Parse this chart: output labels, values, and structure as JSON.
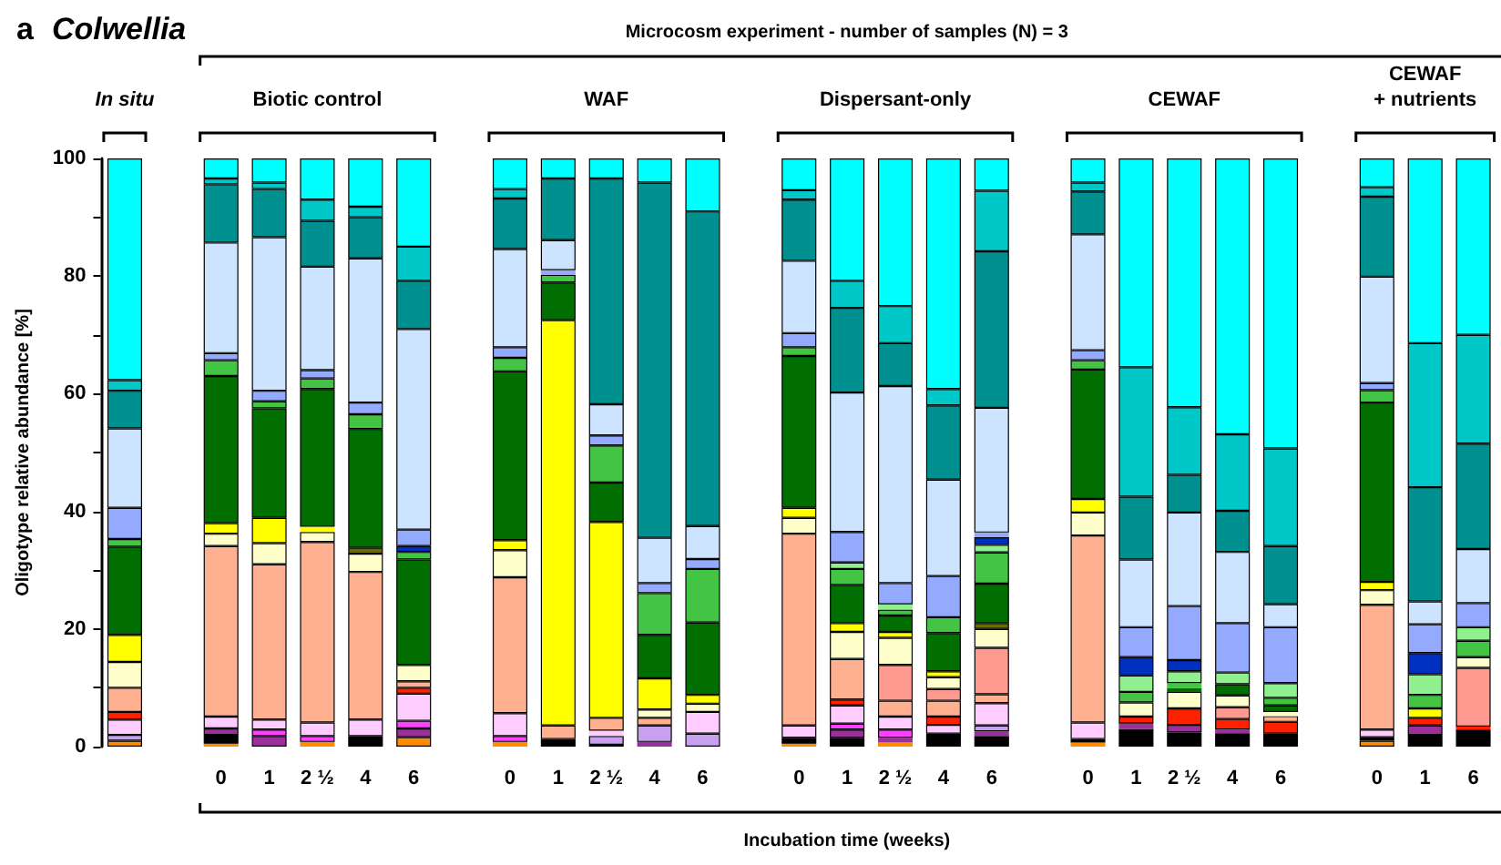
{
  "chart_data": {
    "type": "bar",
    "title": "a Colwellia",
    "xlabel": "Incubation time (weeks)",
    "ylabel": "Oligotype relative abundance [%]",
    "annotations": [
      "In situ",
      "Biotic control",
      "WAF",
      "Dispersant-only",
      "CEWAF",
      "CEWAF\n+ nutrients",
      "Microcosm experiment - number of samples (N) = 3"
    ],
    "categories": [
      null,
      null,
      "0",
      "1",
      "2 ½",
      "4",
      "6",
      null,
      "0",
      "1",
      "2 ½",
      "4",
      "6",
      null,
      "0",
      "1",
      "2 ½",
      "4",
      "6",
      null,
      "0",
      "1",
      "2 ½",
      "4",
      "6",
      null,
      "0",
      "1",
      "6"
    ],
    "stacked": true,
    "ylim": [
      0,
      100
    ],
    "yticks": [
      0,
      {
        "value": 10,
        "label": null
      },
      20,
      {
        "value": 30,
        "label": null
      },
      40,
      {
        "value": 50,
        "label": null
      },
      60,
      {
        "value": 70,
        "label": null
      },
      80,
      {
        "value": 90,
        "label": null
      },
      100
    ],
    "series": [
      {
        "color": "#ff8c00",
        "values": [
          1,
          null,
          0.5,
          0,
          0.8,
          0,
          1.6,
          null,
          0.8,
          0,
          0,
          0,
          0,
          null,
          0.5,
          0,
          0.7,
          0,
          0,
          null,
          0.7,
          0,
          0,
          0,
          0,
          null,
          1.0,
          0,
          0
        ]
      },
      {
        "color": "#000000",
        "values": [
          0,
          null,
          1.5,
          0,
          0,
          1.8,
          0,
          null,
          0,
          1.3,
          0.3,
          0,
          0,
          null,
          1.0,
          1.5,
          0,
          2.2,
          1.8,
          null,
          0.6,
          3.0,
          2.4,
          2.3,
          2.2,
          null,
          0.6,
          2.0,
          2.9
        ]
      },
      {
        "color": "#9b2f9b",
        "values": [
          0,
          null,
          1.1,
          1.8,
          0,
          0,
          1.5,
          null,
          0,
          0,
          0,
          0.8,
          0,
          null,
          0,
          1.4,
          0.8,
          0,
          0.8,
          null,
          0,
          0.9,
          1.3,
          0.6,
          0,
          null,
          0,
          1.6,
          0
        ]
      },
      {
        "color": "#ff40ff",
        "values": [
          0,
          null,
          0,
          1.1,
          1.0,
          0,
          1.3,
          null,
          1.0,
          0,
          0,
          0,
          0,
          null,
          0,
          1.0,
          1.4,
          0,
          0,
          null,
          0,
          0,
          0,
          0,
          0,
          null,
          0,
          0,
          0
        ]
      },
      {
        "color": "#c8a0f0",
        "values": [
          1,
          null,
          0,
          0,
          0,
          0,
          0,
          null,
          0,
          0,
          1.5,
          2.8,
          2.2,
          null,
          0,
          0,
          0,
          0,
          1.0,
          null,
          0,
          0,
          0,
          0,
          0,
          null,
          0,
          0,
          0
        ]
      },
      {
        "color": "#ffccff",
        "values": [
          2.6,
          null,
          2,
          1.7,
          2.3,
          2.8,
          4.6,
          null,
          3.9,
          0,
          0.9,
          0,
          3.7,
          null,
          2.1,
          3.1,
          2.2,
          1.5,
          3.8,
          null,
          2.8,
          0,
          0,
          0,
          0,
          null,
          1.3,
          0,
          0
        ]
      },
      {
        "color": "#ff2000",
        "values": [
          1.3,
          null,
          0,
          0,
          0,
          0,
          1.0,
          null,
          0,
          0,
          0,
          0,
          0,
          null,
          0,
          1.0,
          0,
          1.4,
          0,
          null,
          0,
          1.2,
          2.8,
          1.8,
          2.0,
          null,
          0,
          1.3,
          0.5
        ]
      },
      {
        "color": "#ffb090",
        "values": [
          4.1,
          null,
          29,
          26.4,
          30.7,
          25.1,
          1.1,
          null,
          23.1,
          2.3,
          2.2,
          1.3,
          0,
          null,
          32.6,
          6.9,
          2.7,
          2.7,
          1.5,
          null,
          31.8,
          0,
          0,
          0,
          1.0,
          null,
          21.2,
          0,
          0
        ]
      },
      {
        "color": "#ff9a90",
        "values": [
          0,
          null,
          0,
          0,
          0,
          0,
          0,
          null,
          0,
          0,
          0,
          0,
          0,
          null,
          0,
          0,
          6.1,
          2.0,
          7.9,
          null,
          0,
          0,
          0,
          2.0,
          0,
          null,
          0,
          0,
          10.0
        ]
      },
      {
        "color": "#ffffcc",
        "values": [
          4.4,
          null,
          2.1,
          3.6,
          1.7,
          3.1,
          2.8,
          null,
          4.6,
          0,
          0,
          1.4,
          1.4,
          null,
          2.7,
          4.6,
          4.6,
          2.0,
          3.2,
          null,
          3.9,
          2.4,
          2.8,
          2.0,
          0.7,
          null,
          2.5,
          0,
          1.8
        ]
      },
      {
        "color": "#ffff00",
        "values": [
          4.6,
          null,
          1.8,
          4.3,
          0.9,
          0,
          0,
          null,
          1.7,
          68.9,
          33.3,
          5.3,
          1.5,
          null,
          1.7,
          1.5,
          1.0,
          1.0,
          0,
          null,
          2.3,
          0,
          0,
          0,
          0,
          null,
          1.4,
          1.6,
          0
        ]
      },
      {
        "color": "#6b6b00",
        "values": [
          0,
          null,
          0,
          0,
          0,
          1.0,
          0,
          null,
          0,
          0,
          0,
          0,
          0,
          null,
          0,
          0,
          0,
          0,
          1.0,
          null,
          0,
          0,
          0,
          0,
          0,
          null,
          0,
          0,
          0
        ]
      },
      {
        "color": "#006e00",
        "values": [
          15,
          null,
          25,
          18.6,
          23.4,
          20.2,
          17.9,
          null,
          28.7,
          6.4,
          6.7,
          7.4,
          12.3,
          null,
          25.8,
          6.5,
          2.8,
          6.5,
          6.7,
          null,
          22.0,
          0,
          0.7,
          1.9,
          1.1,
          null,
          30.5,
          0,
          0
        ]
      },
      {
        "color": "#44c444",
        "values": [
          1.3,
          null,
          2.7,
          1.2,
          1.8,
          2.5,
          1.3,
          null,
          2.3,
          1.3,
          6.3,
          7.1,
          9.1,
          null,
          1.5,
          2.7,
          1.0,
          2.7,
          5.3,
          null,
          1.6,
          1.8,
          0.8,
          0,
          1.3,
          null,
          2.1,
          2.3,
          2.8
        ]
      },
      {
        "color": "#90f090",
        "values": [
          0,
          null,
          0,
          0,
          0,
          0,
          0,
          null,
          0,
          0,
          0,
          0,
          0,
          null,
          0,
          1.1,
          0.9,
          0,
          1.3,
          null,
          0,
          2.8,
          2.0,
          2.0,
          2.5,
          null,
          0,
          3.5,
          2.3
        ]
      },
      {
        "color": "#0030c0",
        "values": [
          0,
          null,
          0,
          0,
          0,
          0,
          1.0,
          null,
          0,
          0,
          0,
          0,
          0,
          null,
          0,
          0,
          0,
          0,
          1.3,
          null,
          0,
          3.1,
          1.9,
          0,
          0,
          null,
          0,
          3.6,
          0
        ]
      },
      {
        "color": "#94aaff",
        "values": [
          5.3,
          null,
          1.2,
          1.8,
          1.4,
          2.0,
          2.8,
          null,
          1.8,
          0.8,
          1.7,
          1.7,
          1.7,
          null,
          2.4,
          5.2,
          3.6,
          7.0,
          0.8,
          null,
          1.7,
          5.1,
          9.2,
          8.4,
          9.5,
          null,
          1.2,
          4.9,
          4.1
        ]
      },
      {
        "color": "#cce4ff",
        "values": [
          13.5,
          null,
          18.8,
          26.1,
          17.6,
          24.5,
          34.1,
          null,
          16.7,
          5.1,
          5.3,
          7.7,
          5.6,
          null,
          12.3,
          23.7,
          33.5,
          16.4,
          21.2,
          null,
          19.7,
          11.5,
          15.9,
          12.1,
          3.9,
          null,
          18.1,
          3.9,
          9.2
        ]
      },
      {
        "color": "#009090",
        "values": [
          6.4,
          null,
          9.9,
          8.2,
          7.8,
          7.0,
          8.2,
          null,
          8.6,
          10.5,
          38.4,
          60.4,
          53.5,
          null,
          10.4,
          14.4,
          7.3,
          12.6,
          26.6,
          null,
          7.3,
          10.7,
          6.4,
          7.0,
          9.9,
          null,
          13.6,
          19.4,
          17.9
        ]
      },
      {
        "color": "#00c8c8",
        "values": [
          1.8,
          null,
          1,
          1.1,
          3.6,
          1.8,
          5.8,
          null,
          1.6,
          0,
          0,
          0,
          0,
          null,
          1.6,
          4.6,
          6.3,
          2.8,
          10.3,
          null,
          1.5,
          22.0,
          11.5,
          13.0,
          16.6,
          null,
          1.6,
          24.5,
          18.5
        ]
      },
      {
        "color": "#00ffff",
        "values": [
          37.7,
          null,
          3.4,
          4.1,
          7.0,
          8.2,
          15.0,
          null,
          5.2,
          3.4,
          3.4,
          4.1,
          9.0,
          null,
          5.4,
          20.8,
          25.1,
          39.2,
          5.5,
          null,
          4.1,
          35.5,
          42.3,
          46.9,
          49.3,
          null,
          4.9,
          31.4,
          30.0
        ]
      }
    ]
  }
}
